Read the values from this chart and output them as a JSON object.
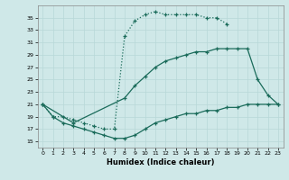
{
  "xlabel": "Humidex (Indice chaleur)",
  "bg_color": "#cfe8e8",
  "line_color": "#1a6b5a",
  "grid_color": "#b8d8d8",
  "xlim": [
    -0.5,
    23.5
  ],
  "ylim": [
    14,
    37
  ],
  "yticks": [
    15,
    17,
    19,
    21,
    23,
    25,
    27,
    29,
    31,
    33,
    35
  ],
  "xticks": [
    0,
    1,
    2,
    3,
    4,
    5,
    6,
    7,
    8,
    9,
    10,
    11,
    12,
    13,
    14,
    15,
    16,
    17,
    18,
    19,
    20,
    21,
    22,
    23
  ],
  "curve1_x": [
    0,
    1,
    2,
    3,
    4,
    5,
    6,
    7,
    8,
    9,
    10,
    11,
    12,
    13,
    14,
    15,
    16,
    17,
    18
  ],
  "curve1_y": [
    21,
    19,
    19,
    18.5,
    18,
    17.5,
    17,
    17,
    32,
    34.5,
    35.5,
    36,
    35.5,
    35.5,
    35.5,
    35.5,
    35,
    35,
    34
  ],
  "curve2_x": [
    0,
    3,
    8,
    9,
    10,
    11,
    12,
    13,
    14,
    15,
    16,
    17,
    18,
    19,
    20,
    21,
    22,
    23
  ],
  "curve2_y": [
    21,
    18,
    22,
    24,
    25.5,
    27,
    28,
    28.5,
    29,
    29.5,
    29.5,
    30,
    30,
    30,
    30,
    25,
    22.5,
    21
  ],
  "curve3_x": [
    0,
    1,
    2,
    3,
    4,
    5,
    6,
    7,
    8,
    9,
    10,
    11,
    12,
    13,
    14,
    15,
    16,
    17,
    18,
    19,
    20,
    21,
    22,
    23
  ],
  "curve3_y": [
    21,
    19,
    18,
    17.5,
    17,
    16.5,
    16,
    15.5,
    15.5,
    16,
    17,
    18,
    18.5,
    19,
    19.5,
    19.5,
    20,
    20,
    20.5,
    20.5,
    21,
    21,
    21,
    21
  ]
}
